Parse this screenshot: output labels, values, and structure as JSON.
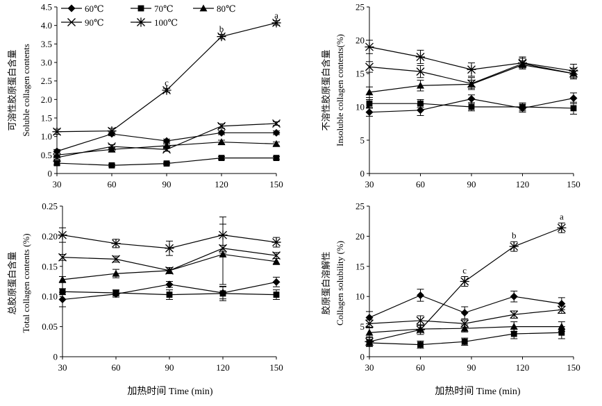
{
  "xlabel": "加热时间 Time (min)",
  "legend": [
    "60℃",
    "70℃",
    "80℃",
    "90℃",
    "100℃"
  ],
  "chart_data": [
    {
      "type": "line",
      "id": "soluble",
      "title": "",
      "ylabel_cn": "可溶性胶原蛋白含量",
      "ylabel_en": "Soluble collagen contents",
      "x": [
        30,
        60,
        90,
        120,
        150
      ],
      "x_ticks": [
        "30",
        "60",
        "90",
        "120",
        "150"
      ],
      "ylim": [
        0,
        4.5
      ],
      "y_ticks": [
        "0",
        "0.5",
        "1.0",
        "1.5",
        "2.0",
        "2.5",
        "3.0",
        "3.5",
        "4.0",
        "4.5"
      ],
      "series": [
        {
          "name": "60℃",
          "marker": "diamond",
          "values": [
            0.6,
            1.07,
            0.88,
            1.1,
            1.1
          ],
          "err": [
            0.05,
            0.05,
            0.05,
            0.05,
            0.05
          ]
        },
        {
          "name": "70℃",
          "marker": "square",
          "values": [
            0.28,
            0.22,
            0.27,
            0.42,
            0.42
          ],
          "err": [
            0.05,
            0.03,
            0.03,
            0.04,
            0.04
          ]
        },
        {
          "name": "80℃",
          "marker": "triangle",
          "values": [
            0.5,
            0.65,
            0.75,
            0.85,
            0.8
          ],
          "err": [
            0.05,
            0.05,
            0.05,
            0.05,
            0.05
          ]
        },
        {
          "name": "90℃",
          "marker": "x",
          "values": [
            0.43,
            0.73,
            0.65,
            1.28,
            1.35
          ],
          "err": [
            0.04,
            0.05,
            0.05,
            0.06,
            0.05
          ]
        },
        {
          "name": "100℃",
          "marker": "star",
          "values": [
            1.13,
            1.15,
            2.25,
            3.7,
            4.07
          ],
          "err": [
            0.07,
            0.07,
            0.05,
            0.06,
            0.06
          ]
        }
      ],
      "annotations": [
        {
          "label": "c",
          "x": 90,
          "y": 2.45
        },
        {
          "label": "b",
          "x": 120,
          "y": 3.9
        },
        {
          "label": "a",
          "x": 150,
          "y": 4.27
        }
      ]
    },
    {
      "type": "line",
      "id": "insoluble",
      "title": "",
      "ylabel_cn": "不溶性胶原蛋白含量",
      "ylabel_en": "Insoluble collagen contents(%)",
      "x": [
        30,
        60,
        90,
        120,
        150
      ],
      "x_ticks": [
        "30",
        "60",
        "90",
        "120",
        "150"
      ],
      "ylim": [
        0,
        25
      ],
      "y_ticks": [
        "0",
        "5",
        "10",
        "15",
        "20",
        "25"
      ],
      "series": [
        {
          "name": "60℃",
          "marker": "diamond",
          "values": [
            9.2,
            9.5,
            11.2,
            9.8,
            11.3
          ],
          "err": [
            0.6,
            0.8,
            0.6,
            0.6,
            0.8
          ]
        },
        {
          "name": "70℃",
          "marker": "square",
          "values": [
            10.5,
            10.5,
            10.0,
            10.0,
            9.8
          ],
          "err": [
            0.6,
            0.6,
            0.6,
            0.6,
            0.9
          ]
        },
        {
          "name": "80℃",
          "marker": "triangle",
          "values": [
            12.2,
            13.2,
            13.4,
            16.3,
            15.0
          ],
          "err": [
            0.8,
            0.8,
            0.6,
            0.6,
            0.8
          ]
        },
        {
          "name": "90℃",
          "marker": "x",
          "values": [
            16.0,
            15.3,
            13.5,
            16.5,
            15.0
          ],
          "err": [
            0.8,
            0.9,
            0.9,
            0.8,
            0.8
          ]
        },
        {
          "name": "100℃",
          "marker": "star",
          "values": [
            19.0,
            17.5,
            15.6,
            16.6,
            15.4
          ],
          "err": [
            1.0,
            1.0,
            1.0,
            0.9,
            1.0
          ]
        }
      ],
      "annotations": []
    },
    {
      "type": "line",
      "id": "total",
      "title": "",
      "ylabel_cn": "总胶原蛋白含量",
      "ylabel_en": "Total collagen contents (%)",
      "x": [
        30,
        60,
        90,
        120,
        150
      ],
      "x_ticks": [
        "30",
        "60",
        "90",
        "120",
        "150"
      ],
      "ylim": [
        0,
        0.25
      ],
      "y_ticks": [
        "0",
        "0.05",
        "0.10",
        "0.15",
        "0.20",
        "0.25"
      ],
      "series": [
        {
          "name": "60℃",
          "marker": "diamond",
          "values": [
            0.095,
            0.104,
            0.12,
            0.106,
            0.124
          ],
          "err": [
            0.012,
            0.005,
            0.005,
            0.01,
            0.008
          ]
        },
        {
          "name": "70℃",
          "marker": "square",
          "values": [
            0.108,
            0.106,
            0.103,
            0.105,
            0.103
          ],
          "err": [
            0.005,
            0.005,
            0.008,
            0.012,
            0.008
          ]
        },
        {
          "name": "80℃",
          "marker": "triangle",
          "values": [
            0.128,
            0.138,
            0.143,
            0.17,
            0.158
          ],
          "err": [
            0.005,
            0.007,
            0.005,
            0.05,
            0.005
          ]
        },
        {
          "name": "90℃",
          "marker": "x",
          "values": [
            0.165,
            0.162,
            0.143,
            0.18,
            0.168
          ],
          "err": [
            0.005,
            0.005,
            0.005,
            0.005,
            0.005
          ]
        },
        {
          "name": "100℃",
          "marker": "star",
          "values": [
            0.202,
            0.188,
            0.18,
            0.202,
            0.19
          ],
          "err": [
            0.012,
            0.007,
            0.012,
            0.03,
            0.008
          ]
        }
      ],
      "annotations": []
    },
    {
      "type": "line",
      "id": "solubility",
      "title": "",
      "ylabel_cn": "胶原蛋白溶解性",
      "ylabel_en": "Collagen solubility (%)",
      "x": [
        30,
        60,
        90,
        120,
        150
      ],
      "x_ticks": [
        "30",
        "60",
        "90",
        "120",
        "150"
      ],
      "ylim": [
        0,
        25
      ],
      "y_ticks": [
        "0",
        "5",
        "10",
        "15",
        "20",
        "25"
      ],
      "series": [
        {
          "name": "60℃",
          "marker": "diamond",
          "x": [
            30,
            60,
            86,
            115,
            143
          ],
          "values": [
            6.5,
            10.2,
            7.3,
            10.0,
            8.8
          ],
          "err": [
            1.0,
            1.0,
            1.0,
            0.9,
            1.0
          ]
        },
        {
          "name": "70℃",
          "marker": "square",
          "x": [
            30,
            60,
            86,
            115,
            143
          ],
          "values": [
            2.3,
            2.0,
            2.5,
            3.8,
            4.0
          ],
          "err": [
            0.6,
            0.6,
            0.6,
            0.8,
            1.0
          ]
        },
        {
          "name": "80℃",
          "marker": "triangle",
          "x": [
            30,
            60,
            86,
            115,
            143
          ],
          "values": [
            4.0,
            4.6,
            4.7,
            5.0,
            5.0
          ],
          "err": [
            0.8,
            0.6,
            0.6,
            0.8,
            0.8
          ]
        },
        {
          "name": "90℃",
          "marker": "x",
          "x": [
            30,
            60,
            86,
            115,
            143
          ],
          "values": [
            5.5,
            6.0,
            5.5,
            7.0,
            7.8
          ],
          "err": [
            0.6,
            0.8,
            0.6,
            0.6,
            0.6
          ]
        },
        {
          "name": "100℃",
          "marker": "star",
          "x": [
            30,
            60,
            86,
            115,
            143
          ],
          "values": [
            2.5,
            4.5,
            12.5,
            18.3,
            21.4
          ],
          "err": [
            0.8,
            0.8,
            0.8,
            0.8,
            0.8
          ]
        }
      ],
      "annotations": [
        {
          "label": "c",
          "x": 86,
          "y": 14.3
        },
        {
          "label": "b",
          "x": 115,
          "y": 20.1
        },
        {
          "label": "a",
          "x": 143,
          "y": 23.2
        }
      ]
    }
  ]
}
